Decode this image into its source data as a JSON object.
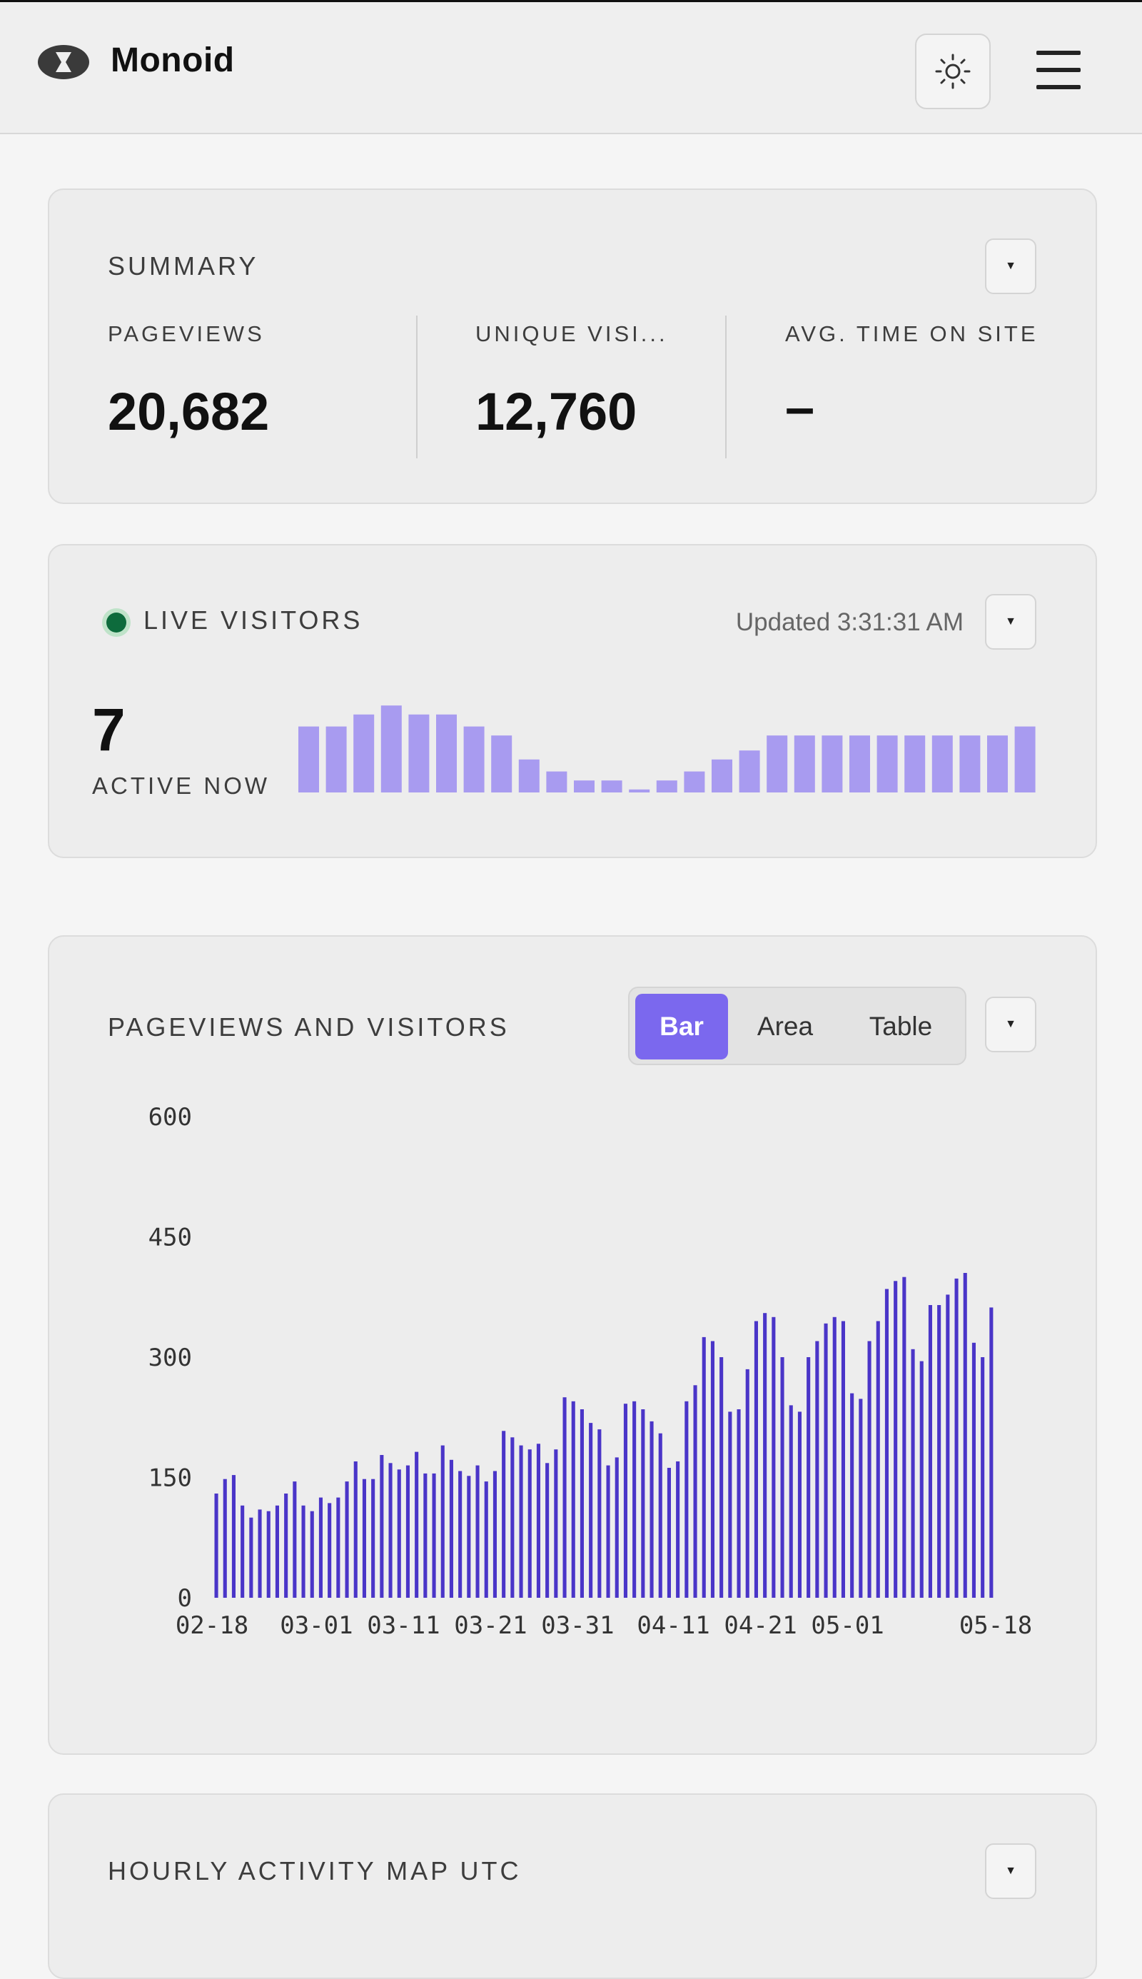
{
  "header": {
    "brand": "Monoid",
    "logo_icon": "eye-logo-icon",
    "theme_icon": "sun-icon",
    "menu_icon": "hamburger-menu-icon"
  },
  "summary": {
    "title": "SUMMARY",
    "dropdown_icon": "caret-down-icon",
    "stats": [
      {
        "label": "PAGEVIEWS",
        "value": "20,682"
      },
      {
        "label": "UNIQUE VISI...",
        "value": "12,760"
      },
      {
        "label": "AVG. TIME ON SITE",
        "value": "–"
      }
    ]
  },
  "live": {
    "title": "LIVE VISITORS",
    "updated": "Updated 3:31:31 AM",
    "active_count": "7",
    "active_label": "ACTIVE NOW",
    "status_color": "#0d6b3c",
    "bar_color": "#a89bf0",
    "sparkline_values": [
      22,
      22,
      26,
      29,
      26,
      26,
      22,
      19,
      11,
      7,
      4,
      4,
      1,
      4,
      7,
      11,
      14,
      19,
      19,
      19,
      19,
      19,
      19,
      19,
      19,
      19,
      22
    ]
  },
  "pageviews": {
    "title": "PAGEVIEWS AND VISITORS",
    "tabs": [
      "Bar",
      "Area",
      "Table"
    ],
    "active_tab": "Bar",
    "accent": "#7b68ee"
  },
  "hourly": {
    "title": "HOURLY ACTIVITY MAP UTC"
  },
  "chart_data": {
    "type": "bar",
    "title": "PAGEVIEWS AND VISITORS",
    "xlabel": "",
    "ylabel": "",
    "ylim": [
      0,
      600
    ],
    "yticks": [
      0,
      150,
      300,
      450,
      600
    ],
    "xtick_labels": [
      "02-18",
      "03-01",
      "03-11",
      "03-21",
      "03-31",
      "04-11",
      "04-21",
      "05-01",
      "05-18"
    ],
    "x_start": "02-18",
    "x_end": "05-18",
    "color": "#4a35c8",
    "values": [
      130,
      148,
      153,
      115,
      100,
      110,
      108,
      115,
      130,
      145,
      115,
      108,
      125,
      118,
      125,
      145,
      170,
      148,
      148,
      178,
      168,
      160,
      165,
      182,
      155,
      155,
      190,
      172,
      158,
      152,
      165,
      145,
      158,
      208,
      200,
      190,
      185,
      192,
      168,
      185,
      250,
      245,
      235,
      218,
      210,
      165,
      175,
      242,
      245,
      235,
      220,
      205,
      162,
      170,
      245,
      265,
      325,
      320,
      300,
      232,
      235,
      285,
      345,
      355,
      350,
      300,
      240,
      232,
      300,
      320,
      342,
      350,
      345,
      255,
      248,
      320,
      345,
      385,
      395,
      400,
      310,
      295,
      365,
      365,
      378,
      398,
      405,
      318,
      300,
      362
    ]
  }
}
